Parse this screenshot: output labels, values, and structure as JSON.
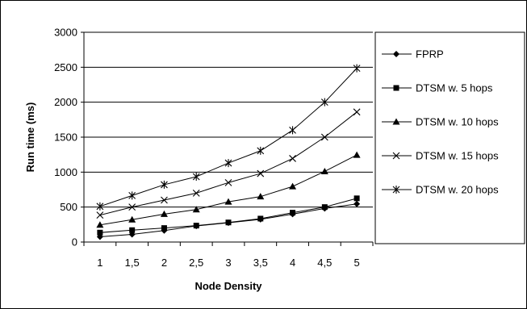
{
  "chart_data": {
    "type": "line",
    "title": "",
    "xlabel": "Node Density",
    "ylabel": "Run time (ms)",
    "categories": [
      "1",
      "1,5",
      "2",
      "2,5",
      "3",
      "3,5",
      "4",
      "4,5",
      "5"
    ],
    "ylim": [
      0,
      3000
    ],
    "yticks": [
      0,
      500,
      1000,
      1500,
      2000,
      2500,
      3000
    ],
    "grid": "horizontal",
    "legend_position": "right",
    "series": [
      {
        "name": "FPRP",
        "marker": "diamond",
        "values": [
          75,
          110,
          165,
          230,
          275,
          325,
          400,
          480,
          545
        ]
      },
      {
        "name": "DTSM w. 5 hops",
        "marker": "square",
        "values": [
          135,
          170,
          200,
          235,
          280,
          335,
          420,
          500,
          625
        ]
      },
      {
        "name": "DTSM w. 10 hops",
        "marker": "triangle",
        "values": [
          245,
          320,
          400,
          465,
          575,
          650,
          795,
          1010,
          1245
        ]
      },
      {
        "name": "DTSM w. 15 hops",
        "marker": "x",
        "values": [
          385,
          500,
          600,
          700,
          850,
          980,
          1195,
          1500,
          1860
        ]
      },
      {
        "name": "DTSM w. 20 hops",
        "marker": "star",
        "values": [
          510,
          665,
          820,
          935,
          1130,
          1305,
          1600,
          2000,
          2485
        ]
      }
    ]
  }
}
